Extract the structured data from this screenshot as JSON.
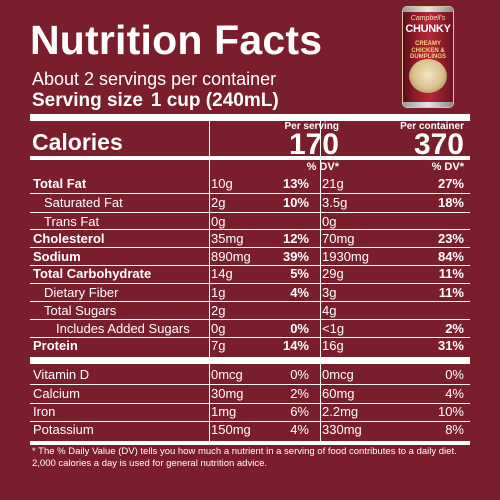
{
  "title": "Nutrition Facts",
  "servings_per_container": "About 2 servings per container",
  "serving_size": {
    "label": "Serving size",
    "value": "1 cup (240mL)"
  },
  "product": {
    "brand": "Campbell's",
    "name": "CHUNKY",
    "flavor": "CREAMY CHICKEN & DUMPLINGS"
  },
  "calories": {
    "label": "Calories",
    "per_serving_label": "Per serving",
    "per_container_label": "Per container",
    "per_serving": "170",
    "per_container": "370"
  },
  "dv_header": "% DV*",
  "nutrients": [
    {
      "name": "Total Fat",
      "serving": "10g",
      "serving_dv": "13%",
      "container": "21g",
      "container_dv": "27%"
    },
    {
      "name": "Saturated Fat",
      "serving": "2g",
      "serving_dv": "10%",
      "container": "3.5g",
      "container_dv": "18%"
    },
    {
      "name": "Trans Fat",
      "serving": "0g",
      "serving_dv": "",
      "container": "0g",
      "container_dv": ""
    },
    {
      "name": "Cholesterol",
      "serving": "35mg",
      "serving_dv": "12%",
      "container": "70mg",
      "container_dv": "23%"
    },
    {
      "name": "Sodium",
      "serving": "890mg",
      "serving_dv": "39%",
      "container": "1930mg",
      "container_dv": "84%"
    },
    {
      "name": "Total Carbohydrate",
      "serving": "14g",
      "serving_dv": "5%",
      "container": "29g",
      "container_dv": "11%"
    },
    {
      "name": "Dietary Fiber",
      "serving": "1g",
      "serving_dv": "4%",
      "container": "3g",
      "container_dv": "11%"
    },
    {
      "name": "Total Sugars",
      "serving": "2g",
      "serving_dv": "",
      "container": "4g",
      "container_dv": ""
    },
    {
      "name": "Includes Added Sugars",
      "serving": "0g",
      "serving_dv": "0%",
      "container": "<1g",
      "container_dv": "2%"
    },
    {
      "name": "Protein",
      "serving": "7g",
      "serving_dv": "14%",
      "container": "16g",
      "container_dv": "31%"
    }
  ],
  "vitamins": [
    {
      "name": "Vitamin D",
      "serving": "0mcg",
      "serving_dv": "0%",
      "container": "0mcg",
      "container_dv": "0%"
    },
    {
      "name": "Calcium",
      "serving": "30mg",
      "serving_dv": "2%",
      "container": "60mg",
      "container_dv": "4%"
    },
    {
      "name": "Iron",
      "serving": "1mg",
      "serving_dv": "6%",
      "container": "2.2mg",
      "container_dv": "10%"
    },
    {
      "name": "Potassium",
      "serving": "150mg",
      "serving_dv": "4%",
      "container": "330mg",
      "container_dv": "8%"
    }
  ],
  "footnote": "* The % Daily Value (DV) tells you how much a nutrient in a serving of food contributes to a daily diet. 2,000 calories a day is used for general nutrition advice.",
  "colors": {
    "background": "#7a1e2c",
    "text": "#ffffff"
  }
}
